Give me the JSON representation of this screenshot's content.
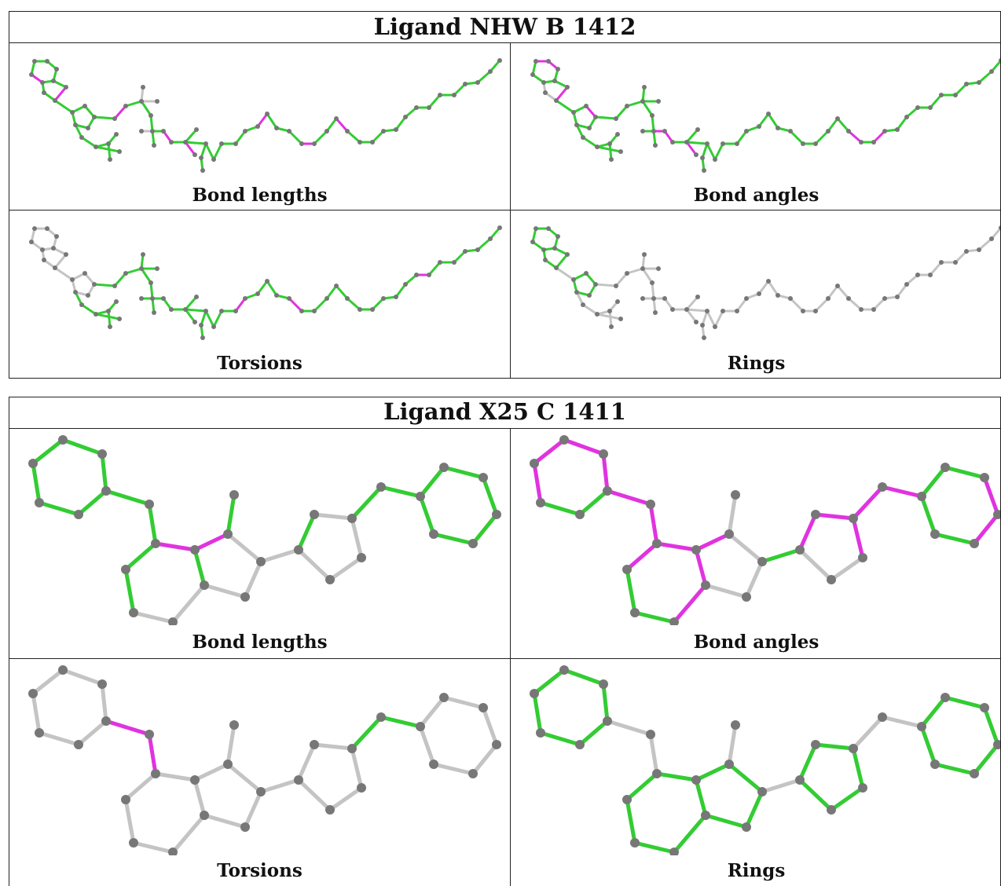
{
  "palette": {
    "good": "#33cc33",
    "outlier": "#e033e0",
    "neutral": "#c4c4c4",
    "atom": "#777777"
  },
  "tables": [
    {
      "title": "Ligand NHW B 1412",
      "panels": [
        {
          "label": "Bond lengths",
          "scheme": "bl"
        },
        {
          "label": "Bond angles",
          "scheme": "ba"
        },
        {
          "label": "Torsions",
          "scheme": "tor"
        },
        {
          "label": "Rings",
          "scheme": "ring"
        }
      ]
    },
    {
      "title": "Ligand X25 C 1411",
      "panels": [
        {
          "label": "Bond lengths",
          "scheme": "bl"
        },
        {
          "label": "Bond angles",
          "scheme": "ba"
        },
        {
          "label": "Torsions",
          "scheme": "tor"
        },
        {
          "label": "Rings",
          "scheme": "ring"
        }
      ]
    }
  ]
}
